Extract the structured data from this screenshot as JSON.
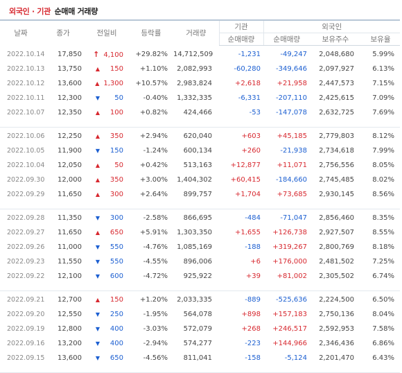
{
  "title": {
    "part1": "외국인 · 기관",
    "part2": "순매매 거래량"
  },
  "headers": {
    "date": "날짜",
    "close": "종가",
    "change": "전일비",
    "rate": "등락률",
    "volume": "거래량",
    "inst_group": "기관",
    "inst_net": "순매매량",
    "foreign_group": "외국인",
    "foreign_net": "순매매량",
    "foreign_hold": "보유주수",
    "foreign_ratio": "보유율"
  },
  "colors": {
    "up": "#d7282f",
    "down": "#1c5fd1"
  },
  "icons": {
    "limit_up": "arrow-up-icon",
    "rise": "triangle-up-icon",
    "fall": "triangle-down-icon"
  },
  "groups": [
    [
      {
        "date": "2022.10.14",
        "close": "17,850",
        "dir": "limit",
        "chg": "4,100",
        "rate": "+29.82%",
        "volume": "14,712,509",
        "inst": "-1,231",
        "foreign": "-49,247",
        "hold": "2,048,680",
        "ratio": "5.99%"
      },
      {
        "date": "2022.10.13",
        "close": "13,750",
        "dir": "up",
        "chg": "150",
        "rate": "+1.10%",
        "volume": "2,082,993",
        "inst": "-60,280",
        "foreign": "-349,646",
        "hold": "2,097,927",
        "ratio": "6.13%"
      },
      {
        "date": "2022.10.12",
        "close": "13,600",
        "dir": "up",
        "chg": "1,300",
        "rate": "+10.57%",
        "volume": "2,983,824",
        "inst": "+2,618",
        "foreign": "+21,958",
        "hold": "2,447,573",
        "ratio": "7.15%"
      },
      {
        "date": "2022.10.11",
        "close": "12,300",
        "dir": "down",
        "chg": "50",
        "rate": "-0.40%",
        "volume": "1,332,335",
        "inst": "-6,331",
        "foreign": "-207,110",
        "hold": "2,425,615",
        "ratio": "7.09%"
      },
      {
        "date": "2022.10.07",
        "close": "12,350",
        "dir": "up",
        "chg": "100",
        "rate": "+0.82%",
        "volume": "424,466",
        "inst": "-53",
        "foreign": "-147,078",
        "hold": "2,632,725",
        "ratio": "7.69%"
      }
    ],
    [
      {
        "date": "2022.10.06",
        "close": "12,250",
        "dir": "up",
        "chg": "350",
        "rate": "+2.94%",
        "volume": "620,040",
        "inst": "+603",
        "foreign": "+45,185",
        "hold": "2,779,803",
        "ratio": "8.12%"
      },
      {
        "date": "2022.10.05",
        "close": "11,900",
        "dir": "down",
        "chg": "150",
        "rate": "-1.24%",
        "volume": "600,134",
        "inst": "+260",
        "foreign": "-21,938",
        "hold": "2,734,618",
        "ratio": "7.99%"
      },
      {
        "date": "2022.10.04",
        "close": "12,050",
        "dir": "up",
        "chg": "50",
        "rate": "+0.42%",
        "volume": "513,163",
        "inst": "+12,877",
        "foreign": "+11,071",
        "hold": "2,756,556",
        "ratio": "8.05%"
      },
      {
        "date": "2022.09.30",
        "close": "12,000",
        "dir": "up",
        "chg": "350",
        "rate": "+3.00%",
        "volume": "1,404,302",
        "inst": "+60,415",
        "foreign": "-184,660",
        "hold": "2,745,485",
        "ratio": "8.02%"
      },
      {
        "date": "2022.09.29",
        "close": "11,650",
        "dir": "up",
        "chg": "300",
        "rate": "+2.64%",
        "volume": "899,757",
        "inst": "+1,704",
        "foreign": "+73,685",
        "hold": "2,930,145",
        "ratio": "8.56%"
      }
    ],
    [
      {
        "date": "2022.09.28",
        "close": "11,350",
        "dir": "down",
        "chg": "300",
        "rate": "-2.58%",
        "volume": "866,695",
        "inst": "-484",
        "foreign": "-71,047",
        "hold": "2,856,460",
        "ratio": "8.35%"
      },
      {
        "date": "2022.09.27",
        "close": "11,650",
        "dir": "up",
        "chg": "650",
        "rate": "+5.91%",
        "volume": "1,303,350",
        "inst": "+1,655",
        "foreign": "+126,738",
        "hold": "2,927,507",
        "ratio": "8.55%"
      },
      {
        "date": "2022.09.26",
        "close": "11,000",
        "dir": "down",
        "chg": "550",
        "rate": "-4.76%",
        "volume": "1,085,169",
        "inst": "-188",
        "foreign": "+319,267",
        "hold": "2,800,769",
        "ratio": "8.18%"
      },
      {
        "date": "2022.09.23",
        "close": "11,550",
        "dir": "down",
        "chg": "550",
        "rate": "-4.55%",
        "volume": "896,006",
        "inst": "+6",
        "foreign": "+176,000",
        "hold": "2,481,502",
        "ratio": "7.25%"
      },
      {
        "date": "2022.09.22",
        "close": "12,100",
        "dir": "down",
        "chg": "600",
        "rate": "-4.72%",
        "volume": "925,922",
        "inst": "+39",
        "foreign": "+81,002",
        "hold": "2,305,502",
        "ratio": "6.74%"
      }
    ],
    [
      {
        "date": "2022.09.21",
        "close": "12,700",
        "dir": "up",
        "chg": "150",
        "rate": "+1.20%",
        "volume": "2,033,335",
        "inst": "-889",
        "foreign": "-525,636",
        "hold": "2,224,500",
        "ratio": "6.50%"
      },
      {
        "date": "2022.09.20",
        "close": "12,550",
        "dir": "down",
        "chg": "250",
        "rate": "-1.95%",
        "volume": "564,078",
        "inst": "+898",
        "foreign": "+157,183",
        "hold": "2,750,136",
        "ratio": "8.04%"
      },
      {
        "date": "2022.09.19",
        "close": "12,800",
        "dir": "down",
        "chg": "400",
        "rate": "-3.03%",
        "volume": "572,079",
        "inst": "+268",
        "foreign": "+246,517",
        "hold": "2,592,953",
        "ratio": "7.58%"
      },
      {
        "date": "2022.09.16",
        "close": "13,200",
        "dir": "down",
        "chg": "400",
        "rate": "-2.94%",
        "volume": "574,277",
        "inst": "-223",
        "foreign": "+144,966",
        "hold": "2,346,436",
        "ratio": "6.86%"
      },
      {
        "date": "2022.09.15",
        "close": "13,600",
        "dir": "down",
        "chg": "650",
        "rate": "-4.56%",
        "volume": "811,041",
        "inst": "-158",
        "foreign": "-5,124",
        "hold": "2,201,470",
        "ratio": "6.43%"
      }
    ]
  ]
}
